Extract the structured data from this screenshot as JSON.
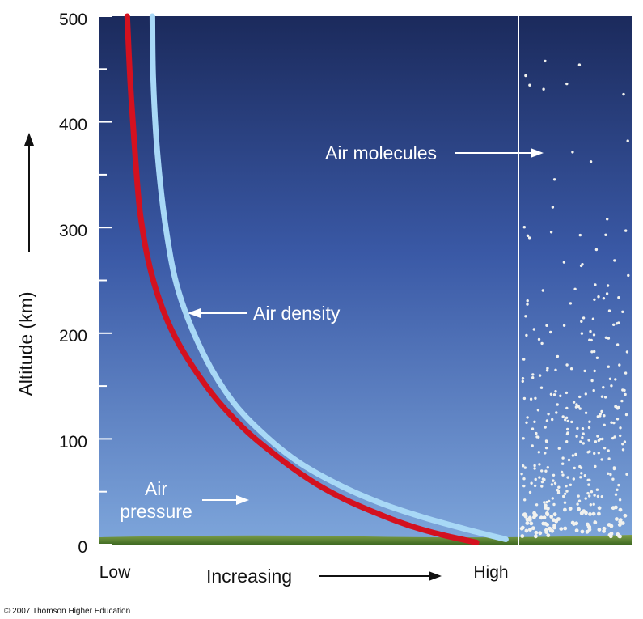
{
  "chart_data": {
    "type": "line",
    "ylabel": "Altitude (km)",
    "ylim": [
      0,
      500
    ],
    "yticks": [
      0,
      100,
      200,
      300,
      400,
      500
    ],
    "xlabel": "Increasing",
    "x_low_label": "Low",
    "x_high_label": "High",
    "grid": false,
    "series": [
      {
        "name": "Air pressure",
        "color": "#d4111f",
        "x": [
          0.9,
          0.82,
          0.74,
          0.66,
          0.58,
          0.5,
          0.42,
          0.34,
          0.26,
          0.18,
          0.13,
          0.1,
          0.085,
          0.075,
          0.068
        ],
        "y": [
          2,
          9,
          18,
          30,
          44,
          62,
          85,
          112,
          148,
          198,
          250,
          310,
          380,
          440,
          500
        ]
      },
      {
        "name": "Air density",
        "color": "#a8d8f6",
        "x": [
          0.97,
          0.88,
          0.78,
          0.68,
          0.58,
          0.48,
          0.4,
          0.32,
          0.25,
          0.19,
          0.16,
          0.14,
          0.13,
          0.128
        ],
        "y": [
          5,
          14,
          25,
          38,
          55,
          77,
          102,
          135,
          180,
          240,
          300,
          370,
          440,
          500
        ]
      }
    ],
    "annotations": {
      "air_density": "Air density",
      "air_pressure_line1": "Air",
      "air_pressure_line2": "pressure",
      "air_molecules": "Air molecules"
    }
  },
  "colors": {
    "sky_top": "#1b2a5c",
    "sky_mid": "#3d5ca8",
    "sky_bottom": "#7aa2d8",
    "ground": "#4f7a2c",
    "molecule": "#f2f2ee"
  },
  "copyright": "© 2007 Thomson Higher Education"
}
